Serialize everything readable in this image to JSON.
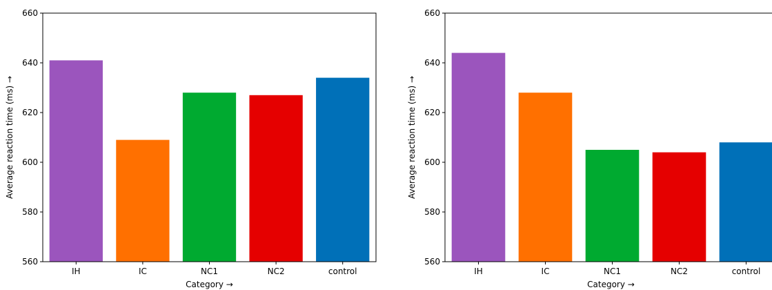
{
  "chart_data": [
    {
      "type": "bar",
      "categories": [
        "IH",
        "IC",
        "NC1",
        "NC2",
        "control"
      ],
      "values": [
        641,
        609,
        628,
        627,
        634
      ],
      "colors": [
        "#9b55bd",
        "#ff7000",
        "#00aa30",
        "#e50000",
        "#0070b8"
      ],
      "title": "",
      "xlabel": "Category →",
      "ylabel": "Average reaction time (ms) →",
      "ylim": [
        560,
        660
      ],
      "yticks": [
        560,
        580,
        600,
        620,
        640,
        660
      ],
      "grid": false
    },
    {
      "type": "bar",
      "categories": [
        "IH",
        "IC",
        "NC1",
        "NC2",
        "control"
      ],
      "values": [
        644,
        628,
        605,
        604,
        608
      ],
      "colors": [
        "#9b55bd",
        "#ff7000",
        "#00aa30",
        "#e50000",
        "#0070b8"
      ],
      "title": "",
      "xlabel": "Category →",
      "ylabel": "Average reaction time (ms) →",
      "ylim": [
        560,
        660
      ],
      "yticks": [
        560,
        580,
        600,
        620,
        640,
        660
      ],
      "grid": false
    }
  ]
}
